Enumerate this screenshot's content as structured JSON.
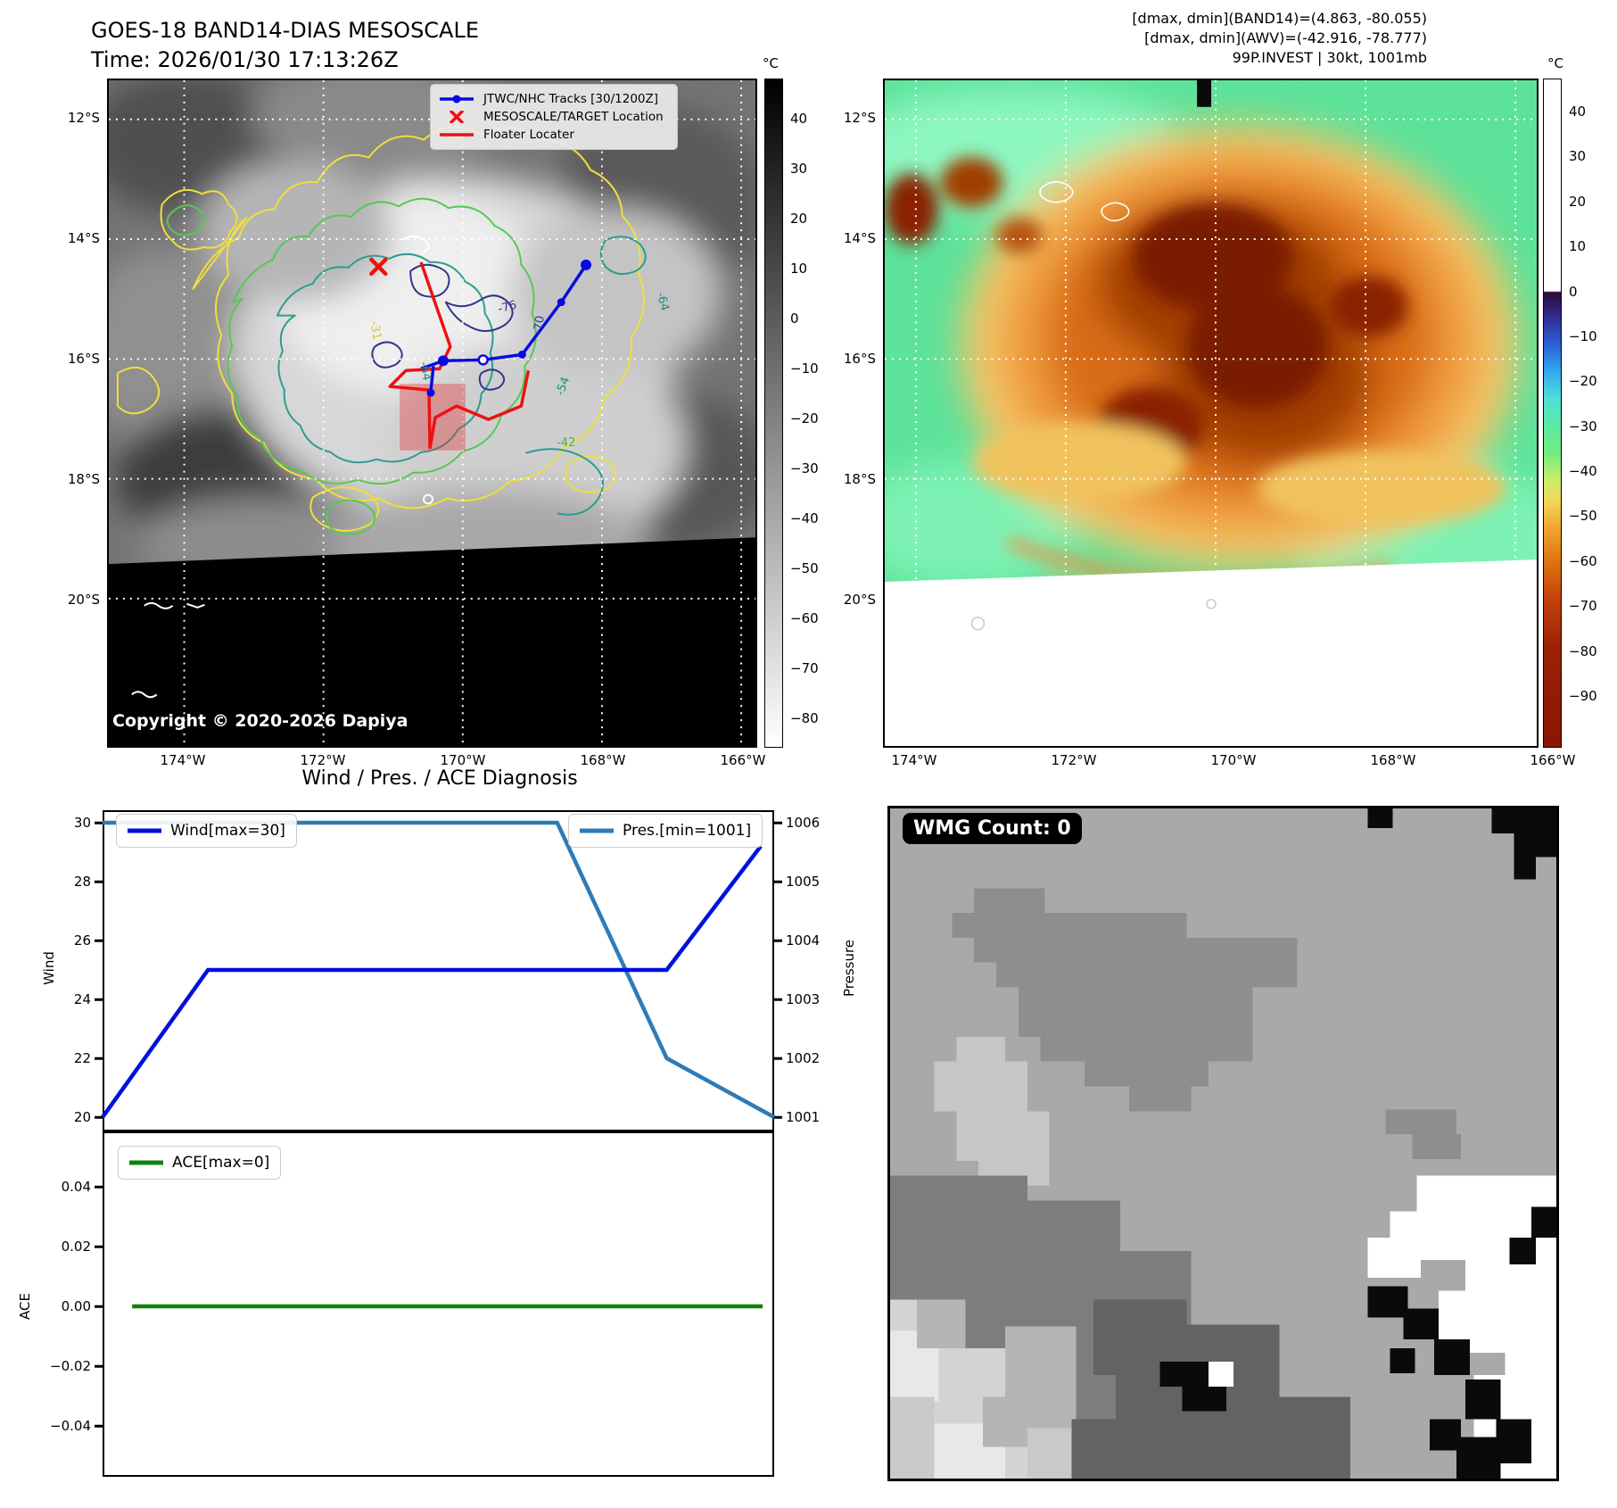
{
  "header": {
    "title_line1": "GOES-18 BAND14-DIAS MESOSCALE",
    "title_line2": "Time: 2026/01/30 17:13:26Z",
    "info_lines": [
      "[dmax, dmin](BAND14)=(4.863, -80.055)",
      "[dmax, dmin](AWV)=(-42.916, -78.777)",
      "99P.INVEST | 30kt, 1001mb"
    ]
  },
  "band14_map": {
    "legend_items": [
      {
        "label": "JTWC/NHC Tracks [30/1200Z]",
        "marker": "blue-track"
      },
      {
        "label": "MESOSCALE/TARGET Location",
        "marker": "red-x"
      },
      {
        "label": "Floater Locater",
        "marker": "red-line"
      }
    ],
    "copyright": "Copyright © 2020-2026 Dapiya",
    "lat_labels": [
      "12°S",
      "14°S",
      "16°S",
      "18°S",
      "20°S"
    ],
    "lon_labels": [
      "174°W",
      "172°W",
      "170°W",
      "168°W",
      "166°W"
    ],
    "colorbar_unit": "°C",
    "colorbar_ticks": [
      "40",
      "30",
      "20",
      "10",
      "0",
      "−10",
      "−20",
      "−30",
      "−40",
      "−50",
      "−60",
      "−70",
      "−80"
    ],
    "contour_labels": [
      "-76",
      "-70",
      "-64",
      "-64",
      "-54",
      "-42",
      "-31"
    ]
  },
  "awv_map": {
    "lat_labels": [
      "12°S",
      "14°S",
      "16°S",
      "18°S",
      "20°S"
    ],
    "lon_labels": [
      "174°W",
      "172°W",
      "170°W",
      "168°W",
      "166°W"
    ],
    "colorbar_unit": "°C",
    "colorbar_ticks": [
      "40",
      "30",
      "20",
      "10",
      "0",
      "−10",
      "−20",
      "−30",
      "−40",
      "−50",
      "−60",
      "−70",
      "−80",
      "−90"
    ]
  },
  "wmg_panel": {
    "label": "WMG Count: 0"
  },
  "colors": {
    "wind_line": "#0010dd",
    "pres_line": "#2e7bb8",
    "ace_line": "#0d850d",
    "track_blue": "#0a0ae0",
    "marker_red": "#ee1111"
  },
  "chart_data": {
    "type": "line",
    "title": "Wind / Pres. / ACE Diagnosis",
    "x_axis": {
      "label": "",
      "range_note": "normalized time 0-1, no tick labels shown"
    },
    "panels": [
      {
        "name": "wind_pressure",
        "series": [
          {
            "name": "Wind[max=30]",
            "color": "#0010dd",
            "axis": "left",
            "x": [
              0,
              0.157,
              0.84,
              0.98
            ],
            "values": [
              20,
              25,
              25,
              29.2
            ]
          },
          {
            "name": "Pres.[min=1001]",
            "color": "#2e7bb8",
            "axis": "right",
            "x": [
              0,
              0.677,
              0.84,
              1.0
            ],
            "values": [
              1006,
              1006,
              1002,
              1001
            ]
          }
        ],
        "left_axis": {
          "label": "Wind",
          "ticks": [
            "30",
            "28",
            "26",
            "24",
            "22",
            "20"
          ],
          "range": [
            19.5,
            30.5
          ]
        },
        "right_axis": {
          "label": "Pressure",
          "ticks": [
            "1006",
            "1005",
            "1004",
            "1003",
            "1002",
            "1001"
          ],
          "range": [
            1000.8,
            1006.3
          ]
        }
      },
      {
        "name": "ace",
        "series": [
          {
            "name": "ACE[max=0]",
            "color": "#0d850d",
            "axis": "left",
            "x": [
              0.044,
              0.983
            ],
            "values": [
              0,
              0
            ]
          }
        ],
        "left_axis": {
          "label": "ACE",
          "ticks": [
            "0.04",
            "0.02",
            "0.00",
            "−0.02",
            "−0.04"
          ],
          "range": [
            -0.058,
            0.043
          ]
        }
      }
    ],
    "legend_position": "upper left / upper right inside axes"
  }
}
